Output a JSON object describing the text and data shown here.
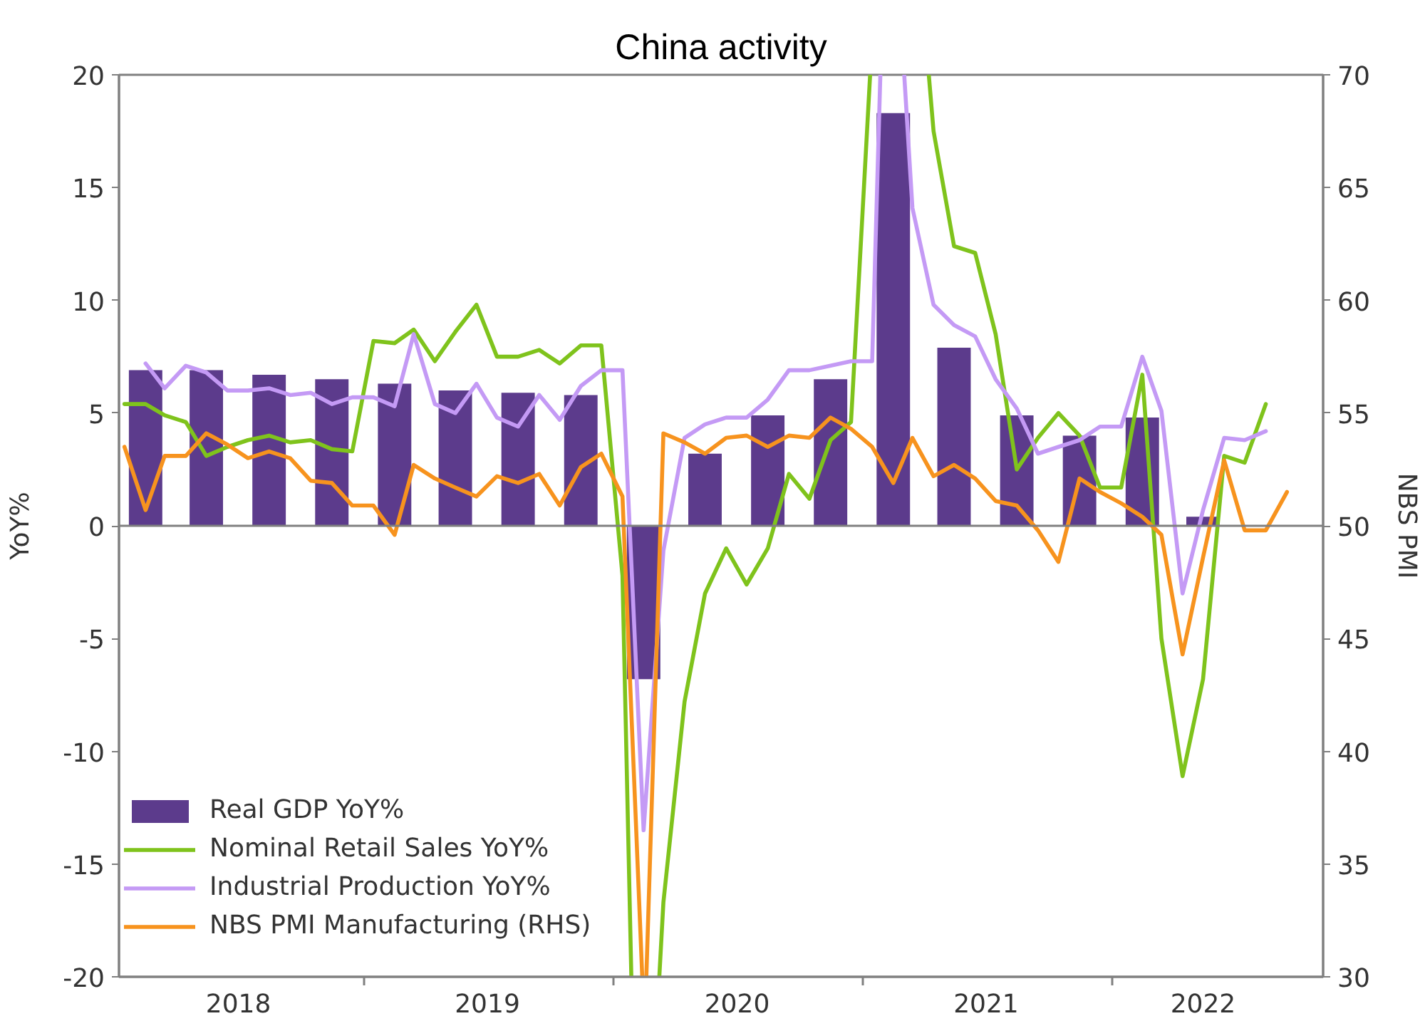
{
  "chart_data": {
    "type": "bar",
    "title": "China activity",
    "ylabel": "YoY%",
    "y2label": "NBS PMI",
    "series": [
      {
        "name": "Real GDP YoY%",
        "color": "#5c3b8c",
        "x": [
          "2018-02-15",
          "2018-05-15",
          "2018-08-15",
          "2018-11-15",
          "2019-02-15",
          "2019-05-15",
          "2019-08-15",
          "2019-11-15",
          "2020-02-15",
          "2020-05-15",
          "2020-08-15",
          "2020-11-15",
          "2021-02-15",
          "2021-05-15",
          "2021-08-15",
          "2021-11-15",
          "2022-02-15",
          "2022-05-15"
        ],
        "values": [
          6.9,
          6.9,
          6.7,
          6.5,
          6.3,
          6.0,
          5.9,
          5.8,
          -6.8,
          3.2,
          4.9,
          6.5,
          18.3,
          7.9,
          4.9,
          4.0,
          4.8,
          0.4
        ]
      },
      {
        "name": "Nominal Retail Sales YoY%",
        "type": "line",
        "color": "#7fc31c",
        "x": [
          "2018-01-15",
          "2018-02-15",
          "2018-03-15",
          "2018-04-15",
          "2018-05-15",
          "2018-06-15",
          "2018-07-15",
          "2018-08-15",
          "2018-09-15",
          "2018-10-15",
          "2018-11-15",
          "2018-12-15",
          "2019-01-15",
          "2019-02-15",
          "2019-03-15",
          "2019-04-15",
          "2019-05-15",
          "2019-06-15",
          "2019-07-15",
          "2019-08-15",
          "2019-09-15",
          "2019-10-15",
          "2019-11-15",
          "2019-12-15",
          "2020-01-15",
          "2020-01-28",
          "2020-02-15",
          "2020-03-09",
          "2020-03-15",
          "2020-04-15",
          "2020-05-15",
          "2020-06-15",
          "2020-07-15",
          "2020-08-15",
          "2020-09-15",
          "2020-10-15",
          "2020-11-15",
          "2020-12-15",
          "2021-01-12",
          "2021-02-15",
          "2021-04-08",
          "2021-04-15",
          "2021-05-15",
          "2021-06-15",
          "2021-07-15",
          "2021-08-15",
          "2021-09-15",
          "2021-10-15",
          "2021-11-15",
          "2021-12-15",
          "2022-01-15",
          "2022-02-15",
          "2022-03-15",
          "2022-04-15",
          "2022-05-15",
          "2022-06-15",
          "2022-07-15",
          "2022-08-15"
        ],
        "values": [
          5.4,
          5.4,
          4.9,
          4.6,
          3.1,
          3.5,
          3.8,
          4.0,
          3.7,
          3.8,
          3.4,
          3.3,
          8.2,
          8.1,
          8.7,
          7.3,
          8.6,
          9.8,
          7.5,
          7.5,
          7.8,
          7.2,
          8.0,
          8.0,
          -2.2,
          -20,
          null,
          -20,
          -16.7,
          -7.8,
          -3.0,
          -1.0,
          -2.6,
          -1.0,
          2.3,
          1.2,
          3.8,
          4.6,
          20,
          null,
          20,
          17.5,
          12.4,
          12.1,
          8.5,
          2.5,
          3.9,
          5.0,
          4.0,
          1.7,
          1.7,
          6.7,
          -5.0,
          -11.1,
          -6.8,
          3.1,
          2.8,
          5.4
        ]
      },
      {
        "name": "Industrial Production YoY%",
        "type": "line",
        "color": "#c49af5",
        "x": [
          "2018-02-15",
          "2018-03-15",
          "2018-04-15",
          "2018-05-15",
          "2018-06-15",
          "2018-07-15",
          "2018-08-15",
          "2018-09-15",
          "2018-10-15",
          "2018-11-15",
          "2018-12-15",
          "2019-01-15",
          "2019-02-15",
          "2019-03-15",
          "2019-04-15",
          "2019-05-15",
          "2019-06-15",
          "2019-07-15",
          "2019-08-15",
          "2019-09-15",
          "2019-10-15",
          "2019-11-15",
          "2019-12-15",
          "2020-01-15",
          "2020-02-15",
          "2020-03-15",
          "2020-04-15",
          "2020-05-15",
          "2020-06-15",
          "2020-07-15",
          "2020-08-15",
          "2020-09-15",
          "2020-10-15",
          "2020-11-15",
          "2020-12-15",
          "2021-01-15",
          "2021-01-27",
          "2021-02-15",
          "2021-03-03",
          "2021-03-15",
          "2021-04-15",
          "2021-05-15",
          "2021-06-15",
          "2021-07-15",
          "2021-08-15",
          "2021-09-15",
          "2021-10-15",
          "2021-11-15",
          "2021-12-15",
          "2022-01-15",
          "2022-02-15",
          "2022-03-15",
          "2022-04-15",
          "2022-05-15",
          "2022-06-15",
          "2022-07-15",
          "2022-08-15"
        ],
        "values": [
          7.2,
          6.1,
          7.1,
          6.8,
          6.0,
          6.0,
          6.1,
          5.8,
          5.9,
          5.4,
          5.7,
          5.7,
          5.3,
          8.5,
          5.4,
          5.0,
          6.3,
          4.8,
          4.4,
          5.8,
          4.7,
          6.2,
          6.9,
          6.9,
          -13.5,
          -1.1,
          3.9,
          4.5,
          4.8,
          4.8,
          5.6,
          6.9,
          6.9,
          7.1,
          7.3,
          7.3,
          20,
          null,
          20,
          14.1,
          9.8,
          8.9,
          8.4,
          6.5,
          5.2,
          3.2,
          3.5,
          3.8,
          4.4,
          4.4,
          7.5,
          5.1,
          -3.0,
          0.7,
          3.9,
          3.8,
          4.2
        ]
      },
      {
        "name": "NBS PMI Manufacturing (RHS)",
        "type": "line",
        "axis": "y2",
        "color": "#f7931e",
        "x": [
          "2018-01-15",
          "2018-02-15",
          "2018-03-15",
          "2018-04-15",
          "2018-05-15",
          "2018-06-15",
          "2018-07-15",
          "2018-08-15",
          "2018-09-15",
          "2018-10-15",
          "2018-11-15",
          "2018-12-15",
          "2019-01-15",
          "2019-02-15",
          "2019-03-15",
          "2019-04-15",
          "2019-05-15",
          "2019-06-15",
          "2019-07-15",
          "2019-08-15",
          "2019-09-15",
          "2019-10-15",
          "2019-11-15",
          "2019-12-15",
          "2020-01-15",
          "2020-02-13",
          "2020-02-16",
          "2020-02-19",
          "2020-03-15",
          "2020-04-15",
          "2020-05-15",
          "2020-06-15",
          "2020-07-15",
          "2020-08-15",
          "2020-09-15",
          "2020-10-15",
          "2020-11-15",
          "2020-12-15",
          "2021-01-15",
          "2021-02-15",
          "2021-03-15",
          "2021-04-15",
          "2021-05-15",
          "2021-06-15",
          "2021-07-15",
          "2021-08-15",
          "2021-09-15",
          "2021-10-15",
          "2021-11-15",
          "2021-12-15",
          "2022-01-15",
          "2022-02-15",
          "2022-03-15",
          "2022-04-15",
          "2022-05-15",
          "2022-06-15",
          "2022-07-15",
          "2022-08-15",
          "2022-09-15"
        ],
        "values": [
          53.5,
          50.7,
          53.1,
          53.1,
          54.1,
          53.6,
          53.0,
          53.3,
          53.0,
          52.0,
          51.9,
          50.9,
          50.9,
          49.6,
          52.7,
          52.1,
          51.7,
          51.3,
          52.2,
          51.9,
          52.3,
          50.9,
          52.6,
          53.2,
          51.3,
          30,
          null,
          30,
          54.1,
          53.7,
          53.2,
          53.9,
          54.0,
          53.5,
          54.0,
          53.9,
          54.8,
          54.3,
          53.5,
          51.9,
          53.9,
          52.2,
          52.7,
          52.1,
          51.1,
          50.9,
          49.8,
          48.4,
          52.1,
          51.5,
          51.0,
          50.4,
          49.6,
          44.3,
          48.6,
          52.9,
          49.8,
          49.8,
          51.5
        ]
      }
    ],
    "xlim": [
      "2018-01-07",
      "2022-11-07"
    ],
    "xticks": [
      {
        "value": "2018-07-01",
        "label": "2018"
      },
      {
        "value": "2019-01-01",
        "label": null
      },
      {
        "value": "2019-07-01",
        "label": "2019"
      },
      {
        "value": "2020-01-01",
        "label": null
      },
      {
        "value": "2020-07-01",
        "label": "2020"
      },
      {
        "value": "2021-01-01",
        "label": null
      },
      {
        "value": "2021-07-01",
        "label": "2021"
      },
      {
        "value": "2022-01-01",
        "label": null
      },
      {
        "value": "2022-05-15",
        "label": "2022"
      }
    ],
    "ylim": [
      -20,
      20
    ],
    "yticks": [
      -20,
      -15,
      -10,
      -5,
      0,
      5,
      10,
      15,
      20
    ],
    "y2lim": [
      30,
      70
    ],
    "y2ticks": [
      30,
      35,
      40,
      45,
      50,
      55,
      60,
      65,
      70
    ],
    "ref_lines": [
      {
        "axis": "y",
        "value": 0,
        "color": "#808080"
      }
    ],
    "legend": "bottom left"
  }
}
